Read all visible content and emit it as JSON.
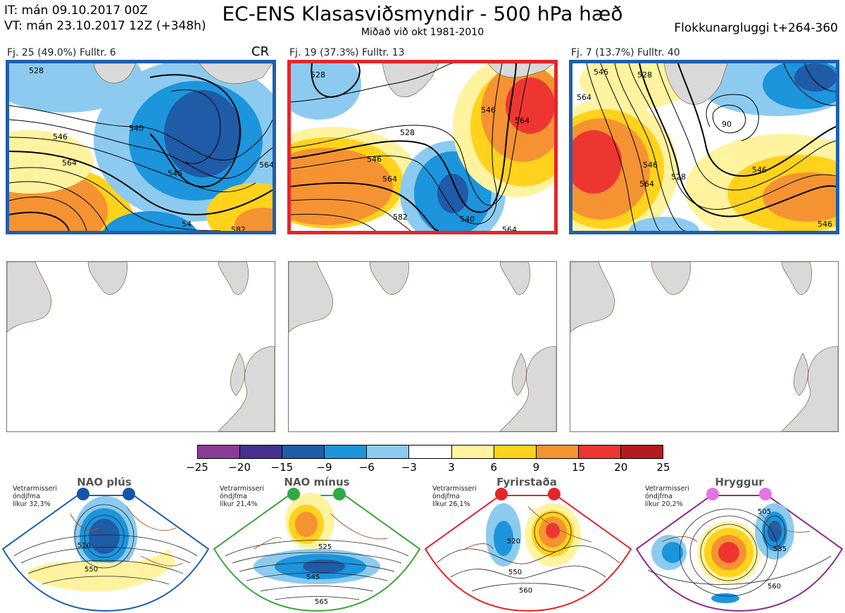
{
  "header": {
    "it_line": "IT: mán 09.10.2017 00Z",
    "vt_line": "VT: mán 23.10.2017 12Z  (+348h)",
    "title": "EC-ENS Klasasviðsmyndir - 500 hPa hæð",
    "subtitle": "Miðað við okt 1981-2010",
    "window": "Flokkunargluggi t+264-360"
  },
  "clusters": [
    {
      "label": "Fj. 25 (49.0%)   Fulltr. 6",
      "tag": "CR",
      "border": "#1f5fae",
      "contours": [
        "528",
        "546",
        "564",
        "546",
        "540",
        "564",
        "54",
        "582"
      ]
    },
    {
      "label": "Fj. 19 (37.3%)   Fulltr. 13",
      "tag": "",
      "border": "#e3262a",
      "contours": [
        "528",
        "528",
        "546",
        "564",
        "546",
        "564",
        "582",
        "540",
        "564"
      ]
    },
    {
      "label": "Fj. 7 (13.7%)   Fulltr. 40",
      "tag": "",
      "border": "#1f5fae",
      "contours": [
        "546",
        "528",
        "564",
        "546",
        "528",
        "564",
        "546",
        "546",
        "90"
      ]
    }
  ],
  "colorbar": {
    "colors": [
      "#8b3d96",
      "#47308f",
      "#1f5ba6",
      "#1c95dc",
      "#8ccbef",
      "#ffffff",
      "#fff3a0",
      "#ffd21c",
      "#f59333",
      "#ee3631",
      "#b51a1e"
    ],
    "ticks": [
      "−25",
      "−20",
      "−15",
      "−9",
      "−6",
      "−3",
      "3",
      "6",
      "9",
      "15",
      "20",
      "25"
    ]
  },
  "regimes": [
    {
      "name": "NAO plús",
      "info": [
        "Vetrarmisseri",
        "óndjfma",
        "líkur 32,3%"
      ],
      "color": "#1f5fae",
      "dot": "#1356a8",
      "contours": [
        "510",
        "550"
      ]
    },
    {
      "name": "NAO mínus",
      "info": [
        "Vetrarmisseri",
        "óndjfma",
        "líkur 21,4%"
      ],
      "color": "#3aa53a",
      "dot": "#2eaa47",
      "contours": [
        "525",
        "545",
        "565"
      ]
    },
    {
      "name": "Fyrirstaða",
      "info": [
        "Vetrarmisseri",
        "óndjfma",
        "líkur 26,1%"
      ],
      "color": "#e3262a",
      "dot": "#e3262a",
      "contours": [
        "520",
        "550",
        "560"
      ]
    },
    {
      "name": "Hryggur",
      "info": [
        "Vetrarmisseri",
        "óndjfma",
        "líkur 20,2%"
      ],
      "color": "#8e2a8e",
      "dot": "#e673e6",
      "contours": [
        "505",
        "535",
        "560"
      ]
    }
  ]
}
